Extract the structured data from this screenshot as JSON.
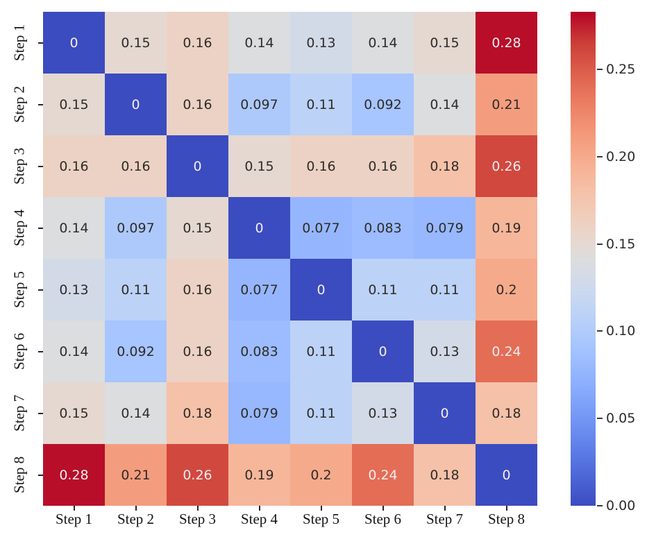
{
  "chart_data": {
    "type": "heatmap",
    "title": "",
    "xlabel": "",
    "ylabel": "",
    "x_categories": [
      "Step 1",
      "Step 2",
      "Step 3",
      "Step 4",
      "Step 5",
      "Step 6",
      "Step 7",
      "Step 8"
    ],
    "y_categories": [
      "Step 1",
      "Step 2",
      "Step 3",
      "Step 4",
      "Step 5",
      "Step 6",
      "Step 7",
      "Step 8"
    ],
    "matrix": [
      [
        0,
        0.15,
        0.16,
        0.14,
        0.13,
        0.14,
        0.15,
        0.28
      ],
      [
        0.15,
        0,
        0.16,
        0.097,
        0.11,
        0.092,
        0.14,
        0.21
      ],
      [
        0.16,
        0.16,
        0,
        0.15,
        0.16,
        0.16,
        0.18,
        0.26
      ],
      [
        0.14,
        0.097,
        0.15,
        0,
        0.077,
        0.083,
        0.079,
        0.19
      ],
      [
        0.13,
        0.11,
        0.16,
        0.077,
        0,
        0.11,
        0.11,
        0.2
      ],
      [
        0.14,
        0.092,
        0.16,
        0.083,
        0.11,
        0,
        0.13,
        0.24
      ],
      [
        0.15,
        0.14,
        0.18,
        0.079,
        0.11,
        0.13,
        0,
        0.18
      ],
      [
        0.28,
        0.21,
        0.26,
        0.19,
        0.2,
        0.24,
        0.18,
        0
      ]
    ],
    "cell_labels": [
      [
        "0",
        "0.15",
        "0.16",
        "0.14",
        "0.13",
        "0.14",
        "0.15",
        "0.28"
      ],
      [
        "0.15",
        "0",
        "0.16",
        "0.097",
        "0.11",
        "0.092",
        "0.14",
        "0.21"
      ],
      [
        "0.16",
        "0.16",
        "0",
        "0.15",
        "0.16",
        "0.16",
        "0.18",
        "0.26"
      ],
      [
        "0.14",
        "0.097",
        "0.15",
        "0",
        "0.077",
        "0.083",
        "0.079",
        "0.19"
      ],
      [
        "0.13",
        "0.11",
        "0.16",
        "0.077",
        "0",
        "0.11",
        "0.11",
        "0.2"
      ],
      [
        "0.14",
        "0.092",
        "0.16",
        "0.083",
        "0.11",
        "0",
        "0.13",
        "0.24"
      ],
      [
        "0.15",
        "0.14",
        "0.18",
        "0.079",
        "0.11",
        "0.13",
        "0",
        "0.18"
      ],
      [
        "0.28",
        "0.21",
        "0.26",
        "0.19",
        "0.2",
        "0.24",
        "0.18",
        "0"
      ]
    ],
    "color_scale": {
      "min": 0,
      "max": 0.283,
      "colormap": "coolwarm",
      "low_color": "#3b4cc0",
      "mid_color": "#dddddd",
      "high_color": "#b40426",
      "annot_dark_text": "#2e2b28",
      "annot_light_text": "#f5eef2"
    },
    "colorbar": {
      "position": "right",
      "ticks": [
        {
          "value": 0.25,
          "label": "0.25"
        },
        {
          "value": 0.2,
          "label": "0.20"
        },
        {
          "value": 0.15,
          "label": "0.15"
        },
        {
          "value": 0.1,
          "label": "0.10"
        },
        {
          "value": 0.05,
          "label": "0.05"
        },
        {
          "value": 0.0,
          "label": "0.00"
        }
      ]
    },
    "grid": false,
    "legend": false
  }
}
